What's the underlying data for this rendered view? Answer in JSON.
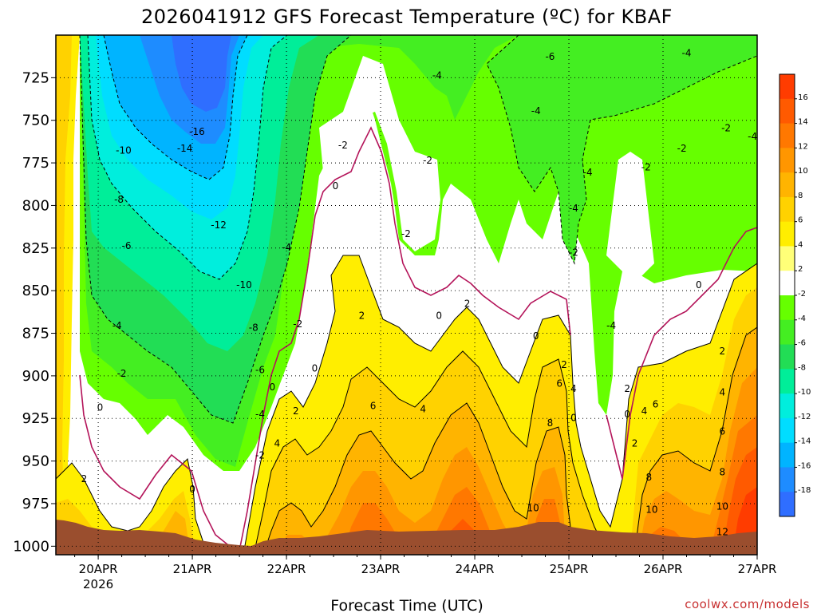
{
  "chart_data": {
    "type": "heatmap",
    "title": "2026041912 GFS Forecast Temperature (ºC) for KBAF",
    "xlabel": "Forecast Time (UTC)",
    "ylabel": "",
    "credit": "coolwx.com/models",
    "y_ticks": [
      725,
      750,
      775,
      800,
      825,
      850,
      875,
      900,
      925,
      950,
      975,
      1000
    ],
    "y_range": [
      700,
      1005
    ],
    "x_ticks": [
      {
        "label": "20APR",
        "sub": "2026"
      },
      {
        "label": "21APR",
        "sub": ""
      },
      {
        "label": "22APR",
        "sub": ""
      },
      {
        "label": "23APR",
        "sub": ""
      },
      {
        "label": "24APR",
        "sub": ""
      },
      {
        "label": "25APR",
        "sub": ""
      },
      {
        "label": "26APR",
        "sub": ""
      },
      {
        "label": "27APR",
        "sub": ""
      }
    ],
    "x_range_days": [
      -0.45,
      7.0
    ],
    "colorbar": {
      "ticks": [
        16,
        14,
        12,
        10,
        8,
        6,
        4,
        2,
        -2,
        -4,
        -6,
        -8,
        -10,
        -12,
        -14,
        -16,
        -18
      ],
      "colors": [
        "#ff3c00",
        "#ff5a00",
        "#ff7800",
        "#ff9600",
        "#ffb400",
        "#ffd200",
        "#ffee00",
        "#ffff78",
        "#ffffff",
        "#66ff00",
        "#44ee22",
        "#22dd55",
        "#00ee99",
        "#00eedd",
        "#00ddff",
        "#00b4ff",
        "#1e8cff",
        "#2f6eff"
      ]
    },
    "contour_labels": [
      {
        "text": "-16",
        "d": 1.05,
        "p": 758
      },
      {
        "text": "-14",
        "d": 0.92,
        "p": 768
      },
      {
        "text": "-10",
        "d": 0.27,
        "p": 769
      },
      {
        "text": "-12",
        "d": 1.28,
        "p": 813
      },
      {
        "text": "-8",
        "d": 0.22,
        "p": 798
      },
      {
        "text": "-6",
        "d": 0.3,
        "p": 825
      },
      {
        "text": "-4",
        "d": 0.2,
        "p": 872
      },
      {
        "text": "-2",
        "d": 0.25,
        "p": 900
      },
      {
        "text": "0",
        "d": 0.02,
        "p": 920
      },
      {
        "text": "2",
        "d": -0.15,
        "p": 962
      },
      {
        "text": "0",
        "d": 1.0,
        "p": 968
      },
      {
        "text": "-10",
        "d": 1.55,
        "p": 848
      },
      {
        "text": "-8",
        "d": 1.65,
        "p": 873
      },
      {
        "text": "-6",
        "d": 1.72,
        "p": 898
      },
      {
        "text": "-4",
        "d": 1.72,
        "p": 924
      },
      {
        "text": "-2",
        "d": 1.72,
        "p": 948
      },
      {
        "text": "-4",
        "d": 2.0,
        "p": 826
      },
      {
        "text": "-2",
        "d": 2.12,
        "p": 871
      },
      {
        "text": "0",
        "d": 1.85,
        "p": 908
      },
      {
        "text": "0",
        "d": 2.3,
        "p": 897
      },
      {
        "text": "2",
        "d": 2.1,
        "p": 922
      },
      {
        "text": "4",
        "d": 1.9,
        "p": 941
      },
      {
        "text": "0",
        "d": 2.52,
        "p": 790
      },
      {
        "text": "-2",
        "d": 2.6,
        "p": 766
      },
      {
        "text": "2",
        "d": 2.8,
        "p": 866
      },
      {
        "text": "-2",
        "d": 3.27,
        "p": 818
      },
      {
        "text": "-2",
        "d": 3.5,
        "p": 775
      },
      {
        "text": "6",
        "d": 2.92,
        "p": 919
      },
      {
        "text": "4",
        "d": 3.45,
        "p": 921
      },
      {
        "text": "0",
        "d": 3.62,
        "p": 866
      },
      {
        "text": "2",
        "d": 3.92,
        "p": 859
      },
      {
        "text": "-4",
        "d": 3.6,
        "p": 725
      },
      {
        "text": "-6",
        "d": 4.8,
        "p": 714
      },
      {
        "text": "-4",
        "d": 4.65,
        "p": 746
      },
      {
        "text": "0",
        "d": 4.65,
        "p": 878
      },
      {
        "text": "2",
        "d": 4.95,
        "p": 895
      },
      {
        "text": "6",
        "d": 4.9,
        "p": 906
      },
      {
        "text": "4",
        "d": 5.05,
        "p": 909
      },
      {
        "text": "8",
        "d": 4.8,
        "p": 929
      },
      {
        "text": "0",
        "d": 5.05,
        "p": 926
      },
      {
        "text": "10",
        "d": 4.62,
        "p": 979
      },
      {
        "text": "-4",
        "d": 5.2,
        "p": 782
      },
      {
        "text": "-4",
        "d": 5.05,
        "p": 803
      },
      {
        "text": "-2",
        "d": 5.05,
        "p": 829
      },
      {
        "text": "-4",
        "d": 5.45,
        "p": 872
      },
      {
        "text": "-2",
        "d": 5.82,
        "p": 779
      },
      {
        "text": "-2",
        "d": 6.2,
        "p": 768
      },
      {
        "text": "-4",
        "d": 6.25,
        "p": 712
      },
      {
        "text": "2",
        "d": 5.62,
        "p": 909
      },
      {
        "text": "0",
        "d": 5.62,
        "p": 924
      },
      {
        "text": "4",
        "d": 5.8,
        "p": 922
      },
      {
        "text": "6",
        "d": 5.92,
        "p": 918
      },
      {
        "text": "2",
        "d": 5.7,
        "p": 941
      },
      {
        "text": "8",
        "d": 5.85,
        "p": 961
      },
      {
        "text": "10",
        "d": 5.88,
        "p": 980
      },
      {
        "text": "0",
        "d": 6.38,
        "p": 848
      },
      {
        "text": "-2",
        "d": 6.67,
        "p": 756
      },
      {
        "text": "-4",
        "d": 6.95,
        "p": 761
      },
      {
        "text": "2",
        "d": 6.63,
        "p": 887
      },
      {
        "text": "4",
        "d": 6.63,
        "p": 911
      },
      {
        "text": "6",
        "d": 6.63,
        "p": 934
      },
      {
        "text": "8",
        "d": 6.63,
        "p": 958
      },
      {
        "text": "10",
        "d": 6.63,
        "p": 978
      },
      {
        "text": "12",
        "d": 6.63,
        "p": 993
      }
    ]
  }
}
